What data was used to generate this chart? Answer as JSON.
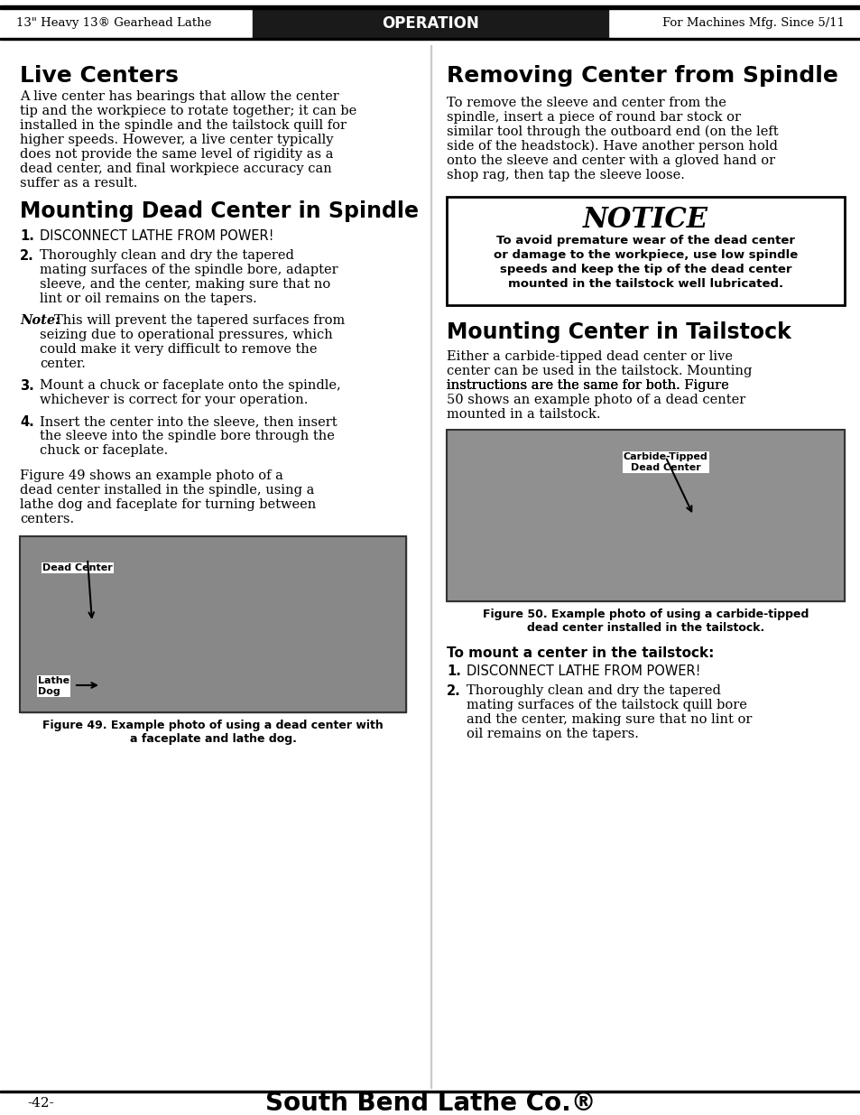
{
  "page_bg": "#ffffff",
  "header_bg": "#1a1a1a",
  "header_text_color": "#ffffff",
  "header_left": "13\" Heavy 13® Gearhead Lathe",
  "header_center": "OPERATION",
  "header_right": "For Machines Mfg. Since 5/11",
  "footer_page": "-42-",
  "footer_brand": "South Bend Lathe Co.®",
  "col1_title1": "Live Centers",
  "col1_body1": "A live center has bearings that allow the center tip and the workpiece to rotate together; it can be installed in the spindle and the tailstock quill for higher speeds. However, a live center typically does not provide the same level of rigidity as a dead center, and final workpiece accuracy can suffer as a result.",
  "col1_title2": "Mounting Dead Center in Spindle",
  "col1_step1": "DISCONNECT LATHE FROM POWER!",
  "col1_step2": "Thoroughly clean and dry the tapered\nmating surfaces of the spindle bore, adapter\nsleeve, and the center, making sure that no\nlint or oil remains on the tapers.",
  "col1_note": "Note: This will prevent the tapered surfaces from\nseizing due to operational pressures, which\ncould make it very difficult to remove the\ncenter.",
  "col1_step3": "Mount a chuck or faceplate onto the spindle,\nwhichever is correct for your operation.",
  "col1_step4": "Insert the center into the sleeve, then insert\nthe sleeve into the spindle bore through the\nchuck or faceplate.",
  "col1_fig49_text": "Figure 49 shows an example photo of a\ndead center installed in the spindle, using a\nlathe dog and faceplate for turning between\ncenters.",
  "col1_fig49_caption": "Figure 49. Example photo of using a dead center with\na faceplate and lathe dog.",
  "col2_title1": "Removing Center from Spindle",
  "col2_body1": "To remove the sleeve and center from the spindle, insert a piece of round bar stock or similar tool through the outboard end (on the left side of the headstock). Have another person hold onto the sleeve and center with a gloved hand or shop rag, then tap the sleeve loose.",
  "notice_title": "NOTICE",
  "notice_body": "To avoid premature wear of the dead center\nor damage to the workpiece, use low spindle\nspeeds and keep the tip of the dead center\nmounted in the tailstock well lubricated.",
  "col2_title2": "Mounting Center in Tailstock",
  "col2_body2": "Either a carbide-tipped dead center or live center can be used in the tailstock. Mounting instructions are the same for both. Figure 50 shows an example photo of a dead center mounted in a tailstock.",
  "col2_fig50_caption": "Figure 50. Example photo of using a carbide-tipped\ndead center installed in the tailstock.",
  "col2_title3": "To mount a center in the tailstock:",
  "col2_ts_step1": "DISCONNECT LATHE FROM POWER!",
  "col2_ts_step2": "Thoroughly clean and dry the tapered\nmating surfaces of the tailstock quill bore\nand the center, making sure that no lint or\noil remains on the tapers."
}
